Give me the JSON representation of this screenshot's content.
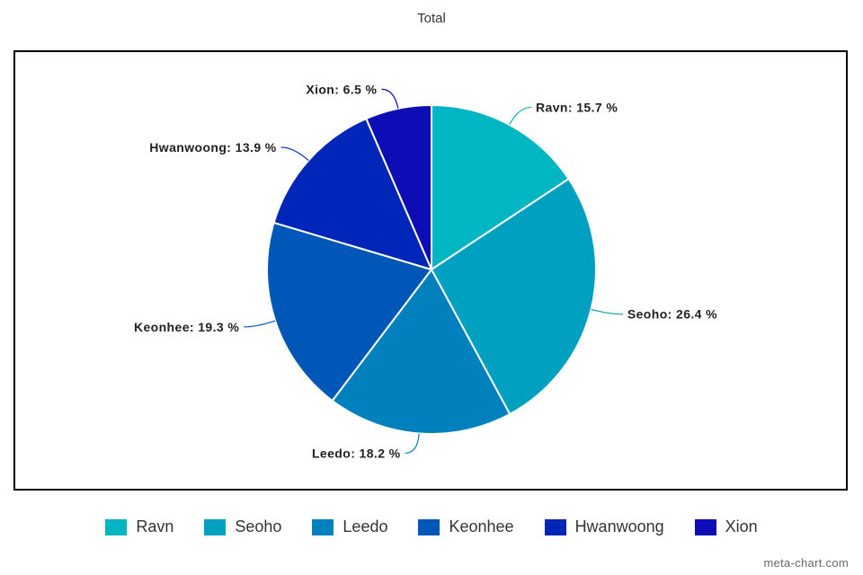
{
  "chart_data": {
    "type": "pie",
    "title": "Total",
    "legend_position": "bottom",
    "slices": [
      {
        "label": "Ravn",
        "value": 15.7,
        "display": "Ravn: 15.7 %",
        "color": "#00b6c3"
      },
      {
        "label": "Seoho",
        "value": 26.4,
        "display": "Seoho: 26.4 %",
        "color": "#00a1c0"
      },
      {
        "label": "Leedo",
        "value": 18.2,
        "display": "Leedo: 18.2 %",
        "color": "#0080bd"
      },
      {
        "label": "Keonhee",
        "value": 19.3,
        "display": "Keonhee: 19.3 %",
        "color": "#0057b7"
      },
      {
        "label": "Hwanwoong",
        "value": 13.9,
        "display": "Hwanwoong: 13.9 %",
        "color": "#0025b9"
      },
      {
        "label": "Xion",
        "value": 6.5,
        "display": "Xion: 6.5 %",
        "color": "#0e0cb5"
      }
    ]
  },
  "watermark": "meta-chart.com"
}
